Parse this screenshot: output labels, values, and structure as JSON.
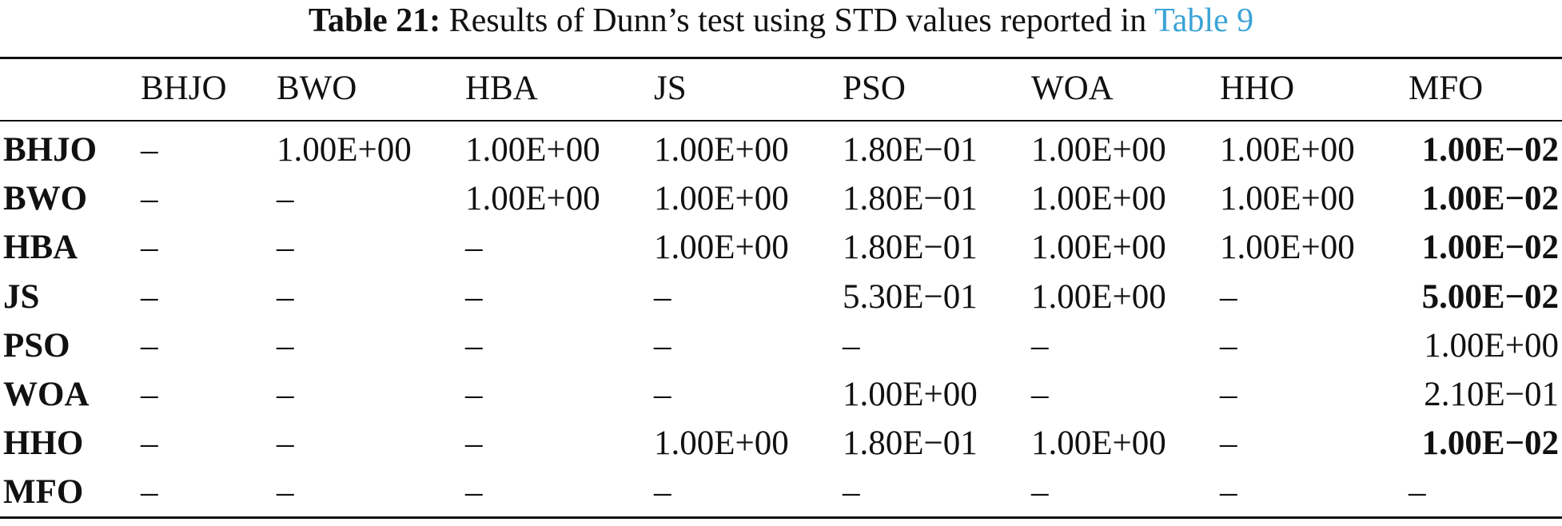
{
  "caption": {
    "label": "Table 21:",
    "text": "Results of Dunn’s test using STD values reported in",
    "link": "Table 9"
  },
  "table": {
    "columns": [
      "BHJO",
      "BWO",
      "HBA",
      "JS",
      "PSO",
      "WOA",
      "HHO",
      "MFO"
    ],
    "rows": [
      {
        "label": "BHJO",
        "cells": [
          {
            "v": "–"
          },
          {
            "v": "1.00E+00"
          },
          {
            "v": "1.00E+00"
          },
          {
            "v": "1.00E+00"
          },
          {
            "v": "1.80E−01"
          },
          {
            "v": "1.00E+00"
          },
          {
            "v": "1.00E+00"
          },
          {
            "v": "1.00E−02",
            "bold": true
          }
        ]
      },
      {
        "label": "BWO",
        "cells": [
          {
            "v": "–"
          },
          {
            "v": "–"
          },
          {
            "v": "1.00E+00"
          },
          {
            "v": "1.00E+00"
          },
          {
            "v": "1.80E−01"
          },
          {
            "v": "1.00E+00"
          },
          {
            "v": "1.00E+00"
          },
          {
            "v": "1.00E−02",
            "bold": true
          }
        ]
      },
      {
        "label": "HBA",
        "cells": [
          {
            "v": "–"
          },
          {
            "v": "–"
          },
          {
            "v": "–"
          },
          {
            "v": "1.00E+00"
          },
          {
            "v": "1.80E−01"
          },
          {
            "v": "1.00E+00"
          },
          {
            "v": "1.00E+00"
          },
          {
            "v": "1.00E−02",
            "bold": true
          }
        ]
      },
      {
        "label": "JS",
        "cells": [
          {
            "v": "–"
          },
          {
            "v": "–"
          },
          {
            "v": "–"
          },
          {
            "v": "–"
          },
          {
            "v": "5.30E−01"
          },
          {
            "v": "1.00E+00"
          },
          {
            "v": "–"
          },
          {
            "v": "5.00E−02",
            "bold": true
          }
        ]
      },
      {
        "label": "PSO",
        "cells": [
          {
            "v": "–"
          },
          {
            "v": "–"
          },
          {
            "v": "–"
          },
          {
            "v": "–"
          },
          {
            "v": "–"
          },
          {
            "v": "–"
          },
          {
            "v": "–"
          },
          {
            "v": "1.00E+00"
          }
        ]
      },
      {
        "label": "WOA",
        "cells": [
          {
            "v": "–"
          },
          {
            "v": "–"
          },
          {
            "v": "–"
          },
          {
            "v": "–"
          },
          {
            "v": "1.00E+00"
          },
          {
            "v": "–"
          },
          {
            "v": "–"
          },
          {
            "v": "2.10E−01"
          }
        ]
      },
      {
        "label": "HHO",
        "cells": [
          {
            "v": "–"
          },
          {
            "v": "–"
          },
          {
            "v": "–"
          },
          {
            "v": "1.00E+00"
          },
          {
            "v": "1.80E−01"
          },
          {
            "v": "1.00E+00"
          },
          {
            "v": "–"
          },
          {
            "v": "1.00E−02",
            "bold": true
          }
        ]
      },
      {
        "label": "MFO",
        "cells": [
          {
            "v": "–"
          },
          {
            "v": "–"
          },
          {
            "v": "–"
          },
          {
            "v": "–"
          },
          {
            "v": "–"
          },
          {
            "v": "–"
          },
          {
            "v": "–"
          },
          {
            "v": "–"
          }
        ]
      }
    ]
  }
}
